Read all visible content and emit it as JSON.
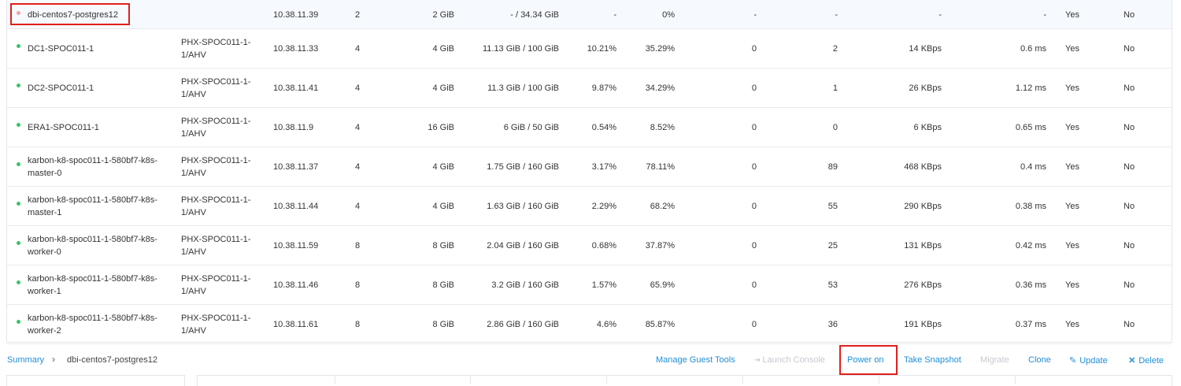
{
  "vms": [
    {
      "name": "dbi-centos7-postgres12",
      "host": "",
      "ip": "10.38.11.39",
      "cores": "2",
      "memory": "2 GiB",
      "storage": "- / 34.34 GiB",
      "cpu": "-",
      "mem_usage": "0%",
      "read_iops": "-",
      "write_iops": "-",
      "io_bw": "-",
      "latency": "-",
      "backup": "Yes",
      "flash": "No",
      "status": "off"
    },
    {
      "name": "DC1-SPOC011-1",
      "host": "PHX-SPOC011-1-1/AHV",
      "ip": "10.38.11.33",
      "cores": "4",
      "memory": "4 GiB",
      "storage": "11.13 GiB / 100 GiB",
      "cpu": "10.21%",
      "mem_usage": "35.29%",
      "read_iops": "0",
      "write_iops": "2",
      "io_bw": "14 KBps",
      "latency": "0.6 ms",
      "backup": "Yes",
      "flash": "No",
      "status": "on"
    },
    {
      "name": "DC2-SPOC011-1",
      "host": "PHX-SPOC011-1-1/AHV",
      "ip": "10.38.11.41",
      "cores": "4",
      "memory": "4 GiB",
      "storage": "11.3 GiB / 100 GiB",
      "cpu": "9.87%",
      "mem_usage": "34.29%",
      "read_iops": "0",
      "write_iops": "1",
      "io_bw": "26 KBps",
      "latency": "1.12 ms",
      "backup": "Yes",
      "flash": "No",
      "status": "on"
    },
    {
      "name": "ERA1-SPOC011-1",
      "host": "PHX-SPOC011-1-1/AHV",
      "ip": "10.38.11.9",
      "cores": "4",
      "memory": "16 GiB",
      "storage": "6 GiB / 50 GiB",
      "cpu": "0.54%",
      "mem_usage": "8.52%",
      "read_iops": "0",
      "write_iops": "0",
      "io_bw": "6 KBps",
      "latency": "0.65 ms",
      "backup": "Yes",
      "flash": "No",
      "status": "on"
    },
    {
      "name": "karbon-k8-spoc011-1-580bf7-k8s-master-0",
      "host": "PHX-SPOC011-1-1/AHV",
      "ip": "10.38.11.37",
      "cores": "4",
      "memory": "4 GiB",
      "storage": "1.75 GiB / 160 GiB",
      "cpu": "3.17%",
      "mem_usage": "78.11%",
      "read_iops": "0",
      "write_iops": "89",
      "io_bw": "468 KBps",
      "latency": "0.4 ms",
      "backup": "Yes",
      "flash": "No",
      "status": "on"
    },
    {
      "name": "karbon-k8-spoc011-1-580bf7-k8s-master-1",
      "host": "PHX-SPOC011-1-1/AHV",
      "ip": "10.38.11.44",
      "cores": "4",
      "memory": "4 GiB",
      "storage": "1.63 GiB / 160 GiB",
      "cpu": "2.29%",
      "mem_usage": "68.2%",
      "read_iops": "0",
      "write_iops": "55",
      "io_bw": "290 KBps",
      "latency": "0.38 ms",
      "backup": "Yes",
      "flash": "No",
      "status": "on"
    },
    {
      "name": "karbon-k8-spoc011-1-580bf7-k8s-worker-0",
      "host": "PHX-SPOC011-1-1/AHV",
      "ip": "10.38.11.59",
      "cores": "8",
      "memory": "8 GiB",
      "storage": "2.04 GiB / 160 GiB",
      "cpu": "0.68%",
      "mem_usage": "37.87%",
      "read_iops": "0",
      "write_iops": "25",
      "io_bw": "131 KBps",
      "latency": "0.42 ms",
      "backup": "Yes",
      "flash": "No",
      "status": "on"
    },
    {
      "name": "karbon-k8-spoc011-1-580bf7-k8s-worker-1",
      "host": "PHX-SPOC011-1-1/AHV",
      "ip": "10.38.11.46",
      "cores": "8",
      "memory": "8 GiB",
      "storage": "3.2 GiB / 160 GiB",
      "cpu": "1.57%",
      "mem_usage": "65.9%",
      "read_iops": "0",
      "write_iops": "53",
      "io_bw": "276 KBps",
      "latency": "0.36 ms",
      "backup": "Yes",
      "flash": "No",
      "status": "on"
    },
    {
      "name": "karbon-k8-spoc011-1-580bf7-k8s-worker-2",
      "host": "PHX-SPOC011-1-1/AHV",
      "ip": "10.38.11.61",
      "cores": "8",
      "memory": "8 GiB",
      "storage": "2.86 GiB / 160 GiB",
      "cpu": "4.6%",
      "mem_usage": "85.87%",
      "read_iops": "0",
      "write_iops": "36",
      "io_bw": "191 KBps",
      "latency": "0.37 ms",
      "backup": "Yes",
      "flash": "No",
      "status": "on"
    }
  ],
  "status_colors": {
    "on": "#3cc26a",
    "off": "#f0a0a8"
  },
  "breadcrumb": {
    "root": "Summary",
    "separator": "›",
    "current": "dbi-centos7-postgres12"
  },
  "actions": {
    "manage_guest_tools": "Manage Guest Tools",
    "launch_console": "Launch Console",
    "power_on": "Power on",
    "take_snapshot": "Take Snapshot",
    "migrate": "Migrate",
    "clone": "Clone",
    "update": "Update",
    "delete": "Delete"
  },
  "icons": {
    "launch_console": "console-icon",
    "update": "pencil-icon",
    "delete": "x-icon"
  },
  "accent_color": "#1f8fd6",
  "highlight_color": "#e0201c"
}
